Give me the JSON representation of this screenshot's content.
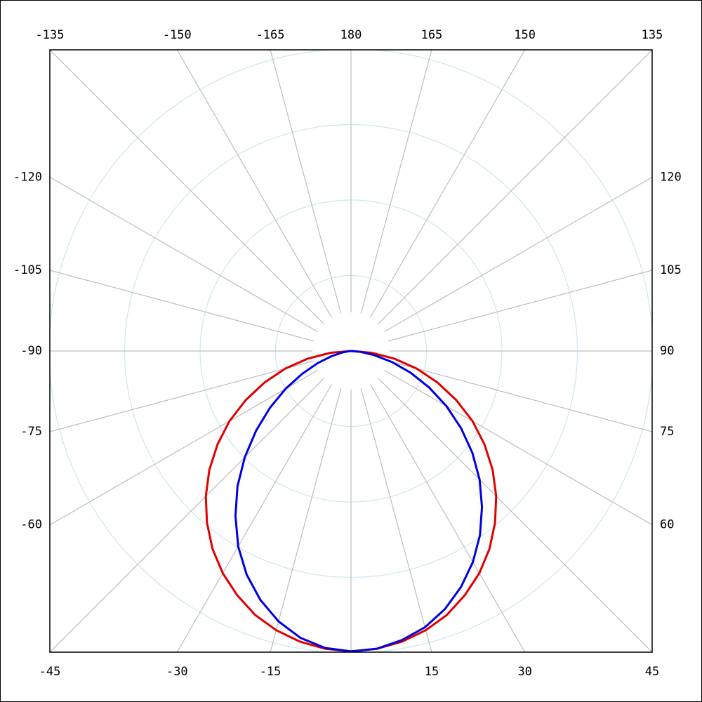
{
  "chart_data": {
    "type": "polar",
    "rlim": [
      0,
      400
    ],
    "rticks": [
      100,
      200,
      300,
      400
    ],
    "thetaticks": [
      -165,
      -150,
      -135,
      -120,
      -105,
      -90,
      -75,
      -60,
      -45,
      -30,
      -15,
      {
        "value": 0,
        "label": null
      },
      15,
      30,
      45,
      60,
      75,
      90,
      105,
      120,
      135,
      150,
      165,
      180
    ],
    "theta": [
      -90,
      -85,
      -80,
      -75,
      -70,
      -65,
      -60,
      -55,
      -50,
      -45,
      -40,
      -35,
      -30,
      -25,
      -20,
      -15,
      -10,
      -5,
      0,
      5,
      10,
      15,
      20,
      25,
      30,
      35,
      40,
      45,
      50,
      55,
      60,
      65,
      70,
      75,
      80,
      85,
      90
    ],
    "series": [
      {
        "color": "#e00000",
        "values": [
          0,
          27,
          58,
          90,
          122,
          154,
          186,
          216,
          245,
          272,
          297,
          320,
          340,
          357,
          372,
          383,
          391,
          396,
          398,
          396,
          391,
          383,
          372,
          357,
          340,
          320,
          297,
          272,
          245,
          216,
          186,
          154,
          122,
          90,
          58,
          27,
          0
        ]
      },
      {
        "color": "#0000e0",
        "values": [
          0,
          3,
          12,
          27,
          47,
          71,
          100,
          131,
          164,
          199,
          234,
          267,
          299,
          327,
          351,
          371,
          386,
          395,
          398,
          396,
          389,
          379,
          364,
          345,
          323,
          298,
          270,
          241,
          210,
          178,
          146,
          114,
          84,
          56,
          31,
          12,
          0
        ]
      }
    ]
  }
}
